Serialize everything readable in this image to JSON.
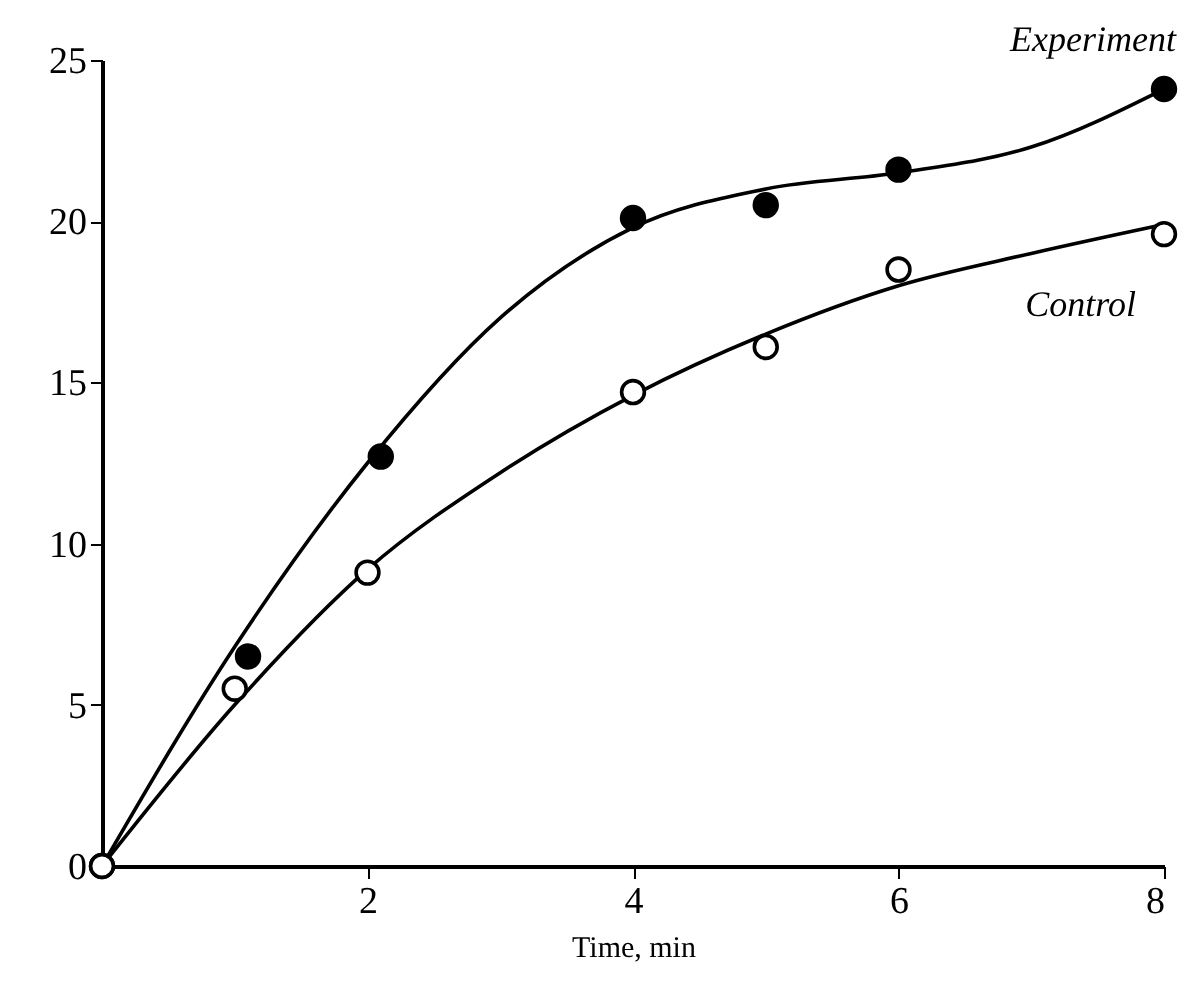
{
  "chart_data": {
    "type": "scatter",
    "xlabel": "Time, min",
    "xlim": [
      0,
      8
    ],
    "ylim": [
      0,
      25
    ],
    "xticks": [
      2,
      4,
      6,
      8
    ],
    "yticks": [
      0,
      5,
      10,
      15,
      20,
      25
    ],
    "grid": false,
    "marker": "circle",
    "series": [
      {
        "name": "Experiment",
        "color": "#000000",
        "x": [
          0,
          1.1,
          2.1,
          4,
          5,
          6,
          8
        ],
        "values": [
          0,
          6.5,
          12.7,
          20.1,
          20.5,
          21.6,
          24.1
        ]
      },
      {
        "name": "Control",
        "color": "#ffffff",
        "x": [
          0,
          1,
          2,
          4,
          5,
          6,
          8
        ],
        "values": [
          0,
          5.5,
          9.1,
          14.7,
          16.1,
          18.5,
          19.6
        ]
      },
      {
        "type": "line",
        "color": "#000000",
        "marker": "none",
        "line_style": "solid",
        "x": [
          0,
          1,
          2,
          3,
          4,
          5,
          6,
          7,
          8
        ],
        "values": [
          0,
          6.8,
          12.5,
          17,
          19.8,
          21,
          21.5,
          22.3,
          24.1
        ]
      },
      {
        "type": "line",
        "color": "#000000",
        "marker": "none",
        "line_style": "solid",
        "x": [
          0,
          1,
          2,
          3,
          4,
          5,
          6,
          7,
          8
        ],
        "values": [
          0,
          5,
          9.2,
          12.2,
          14.6,
          16.5,
          18,
          19,
          19.9
        ]
      }
    ]
  }
}
